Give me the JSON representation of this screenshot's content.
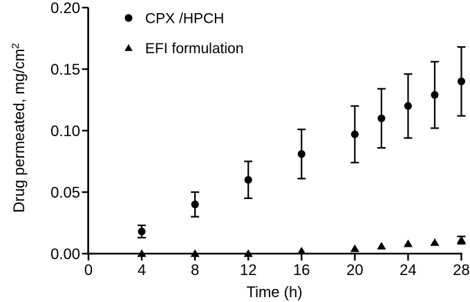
{
  "figure": {
    "background": "#ffffff",
    "ink": "#000000"
  },
  "chart_data": {
    "type": "scatter",
    "title": "",
    "xlabel": "Time (h)",
    "ylabel": "Drug permeated, mg/cm²",
    "xlim": [
      0,
      28
    ],
    "ylim": [
      0,
      0.2
    ],
    "x_ticks": [
      "0",
      "4",
      "8",
      "12",
      "16",
      "20",
      "24",
      "28"
    ],
    "y_ticks": [
      "0.00",
      "0.05",
      "0.10",
      "0.15",
      "0.20"
    ],
    "grid": false,
    "legend_position": "top-left-inside",
    "series": [
      {
        "name": "CPX /HPCH",
        "marker": "circle",
        "color": "#000000",
        "x": [
          4,
          8,
          12,
          16,
          20,
          22,
          24,
          26,
          28
        ],
        "y": [
          0.018,
          0.04,
          0.06,
          0.081,
          0.097,
          0.11,
          0.12,
          0.129,
          0.14
        ],
        "y_err": [
          0.005,
          0.01,
          0.015,
          0.02,
          0.023,
          0.024,
          0.026,
          0.027,
          0.028
        ]
      },
      {
        "name": "EFI formulation",
        "marker": "triangle",
        "color": "#000000",
        "x": [
          4,
          8,
          12,
          16,
          20,
          22,
          24,
          26,
          28
        ],
        "y": [
          0.0,
          0.0,
          0.0,
          0.002,
          0.004,
          0.006,
          0.008,
          0.009,
          0.011
        ],
        "y_err": [
          0,
          0,
          0,
          0,
          0,
          0,
          0,
          0,
          0.003
        ]
      }
    ]
  }
}
